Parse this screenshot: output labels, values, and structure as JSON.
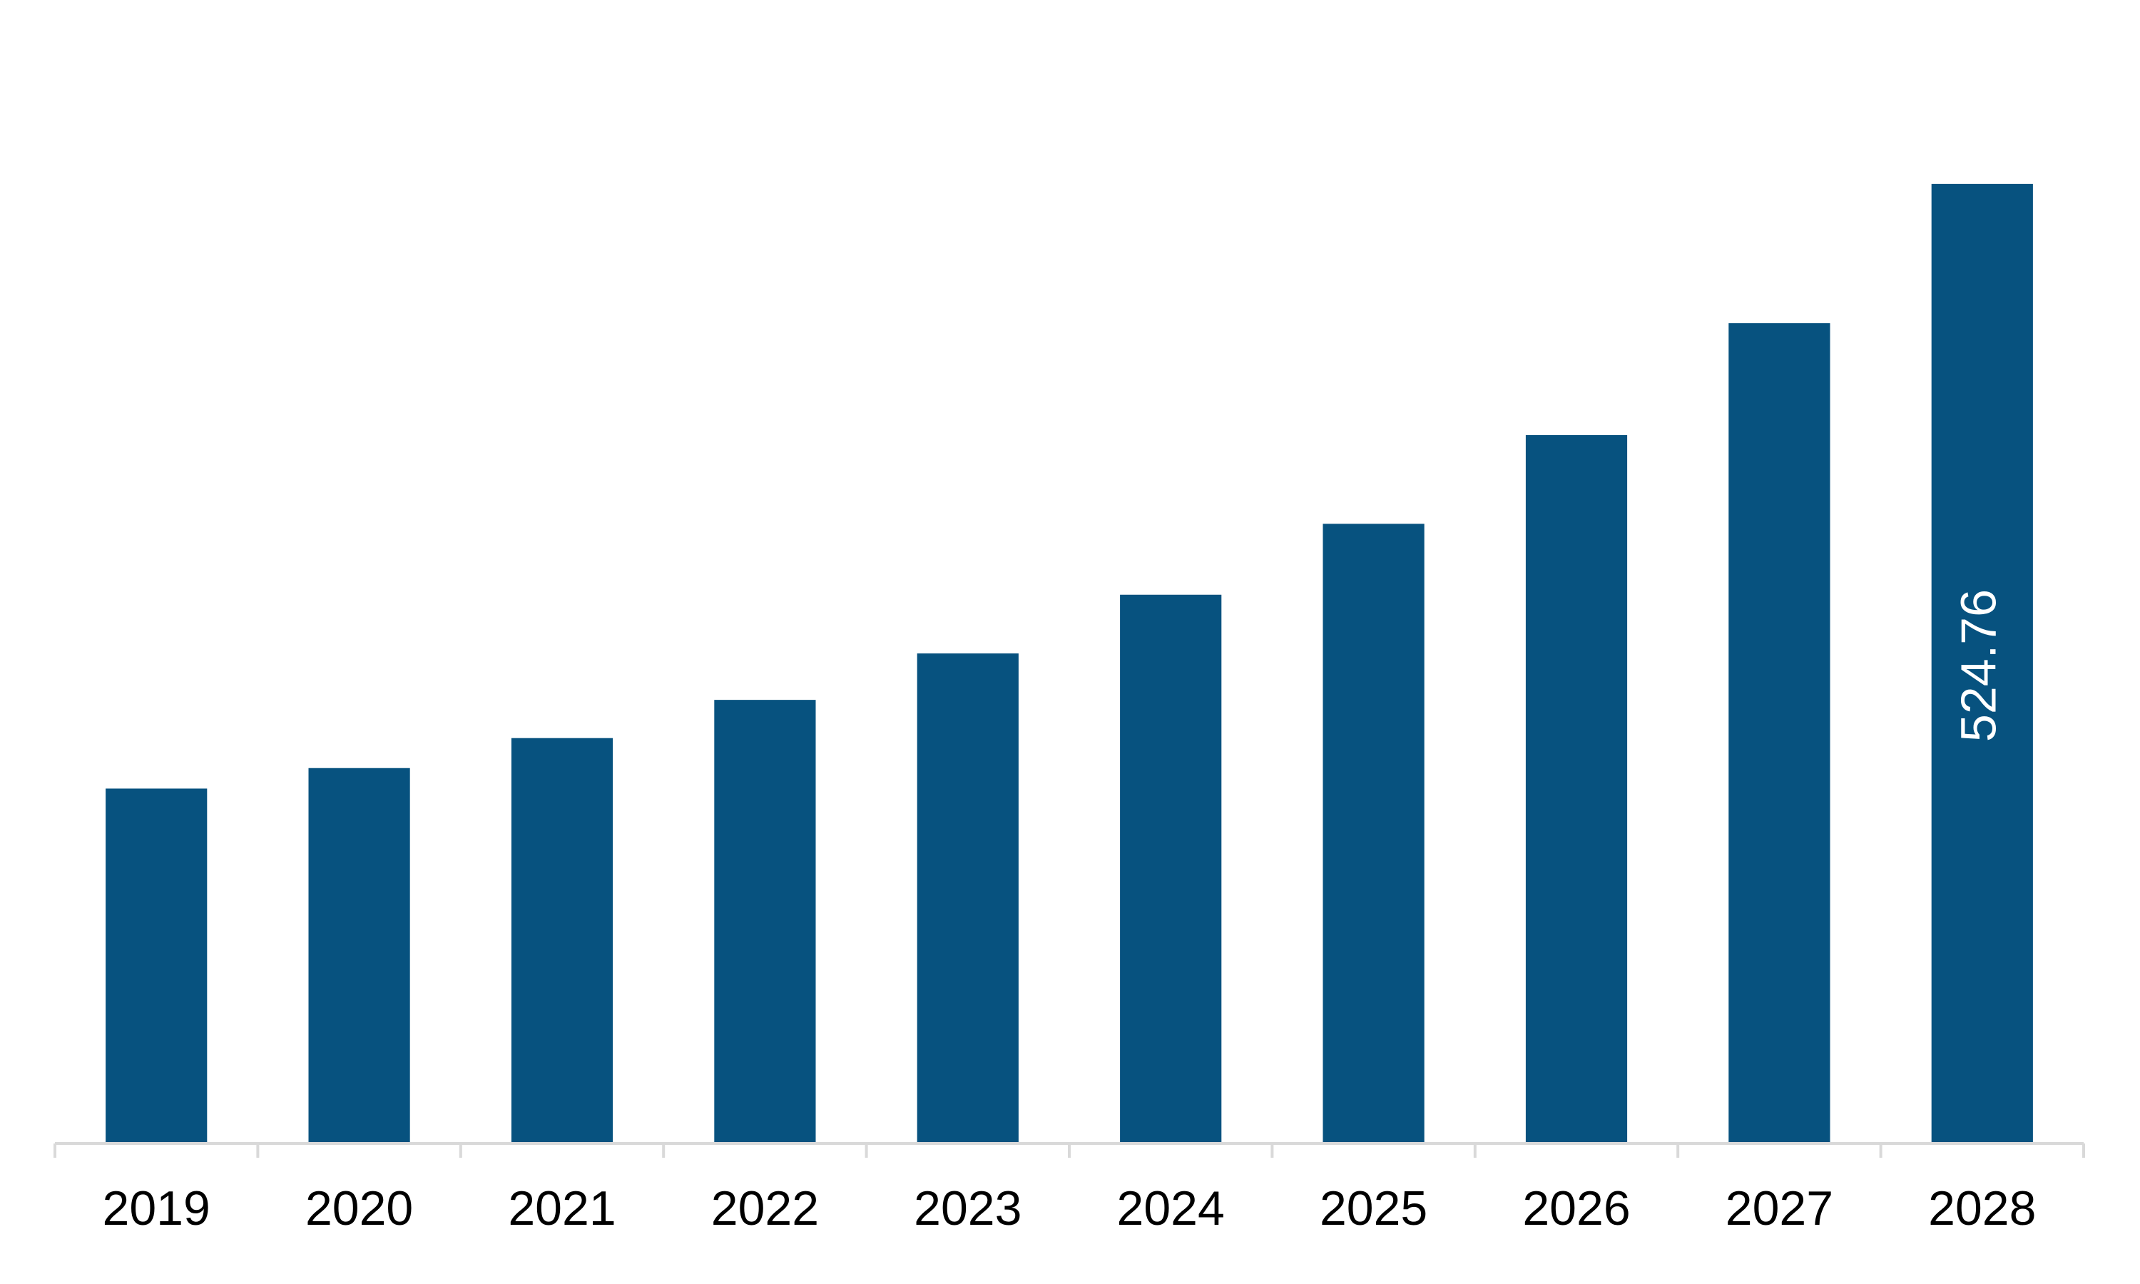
{
  "chart_data": {
    "type": "bar",
    "categories": [
      "2019",
      "2020",
      "2021",
      "2022",
      "2023",
      "2024",
      "2025",
      "2026",
      "2027",
      "2028"
    ],
    "values": [
      194.1,
      205.3,
      221.7,
      242.6,
      268.0,
      300.1,
      338.9,
      387.4,
      448.6,
      524.76
    ],
    "value_labels": [
      null,
      null,
      null,
      null,
      null,
      null,
      null,
      null,
      null,
      "524.76"
    ],
    "color": "#07527f",
    "ylim": [
      0,
      600
    ],
    "grid": false
  }
}
